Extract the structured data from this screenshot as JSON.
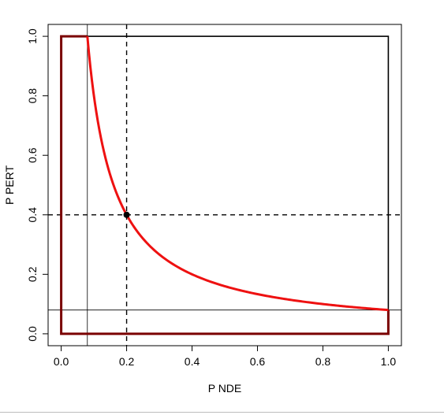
{
  "chart_data": {
    "type": "line",
    "title": "",
    "xlabel": "P NDE",
    "ylabel": "P PERT",
    "xlim": [
      -0.04,
      1.04
    ],
    "ylim": [
      -0.04,
      1.04
    ],
    "x_ticks": [
      "0.0",
      "0.2",
      "0.4",
      "0.6",
      "0.8",
      "1.0"
    ],
    "y_ticks": [
      "0.0",
      "0.2",
      "0.4",
      "0.6",
      "0.8",
      "1.0"
    ],
    "grid": false,
    "curve": {
      "formula": "y = 0.08 / x",
      "x_range": [
        0.08,
        1.0
      ],
      "color": "#ee1111"
    },
    "point": {
      "x": 0.2,
      "y": 0.4,
      "color": "#000000"
    },
    "dashed_lines": {
      "vertical_x": 0.2,
      "horizontal_y": 0.4
    },
    "thin_lines": {
      "vertical_x": 0.08,
      "horizontal_y": 0.08
    },
    "region_outline_color": "#7a0000",
    "square_outline_color": "#000000"
  }
}
